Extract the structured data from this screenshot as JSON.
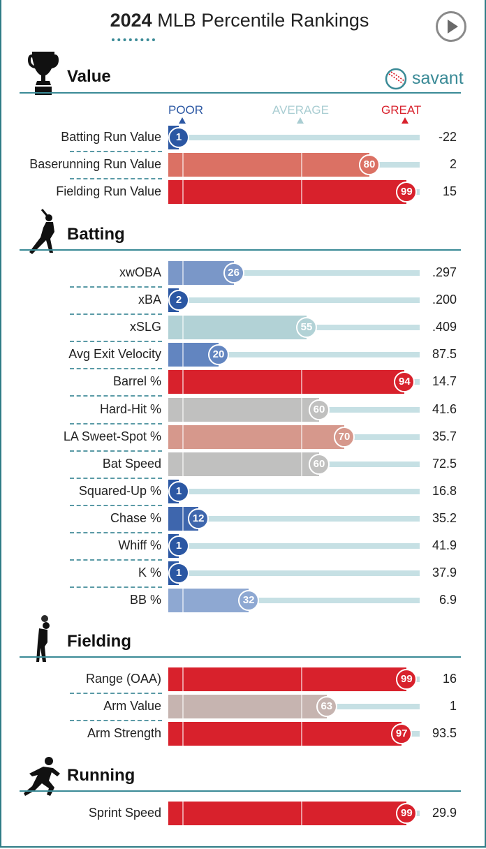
{
  "header": {
    "title_year": "2024",
    "title_rest": "MLB Percentile Rankings",
    "brand": "savant"
  },
  "scale_labels": {
    "poor": "POOR",
    "average": "AVERAGE",
    "great": "GREAT"
  },
  "colors": {
    "poor": "#2b57a3",
    "average": "#b0d3d8",
    "great": "#d8212c",
    "accent": "#3a8a96"
  },
  "icons": {
    "value": "trophy-icon",
    "batting": "batter-icon",
    "fielding": "fielder-icon",
    "running": "runner-icon",
    "brand": "baseball-icon"
  },
  "chart_data": {
    "type": "bar",
    "title": "2024 MLB Percentile Rankings",
    "xlim": [
      0,
      100
    ],
    "sections": [
      {
        "name": "Value",
        "metrics": [
          {
            "label": "Batting Run Value",
            "percentile": 1,
            "value": "-22",
            "color": "#2b57a3"
          },
          {
            "label": "Baserunning Run Value",
            "percentile": 80,
            "value": "2",
            "color": "#db7164"
          },
          {
            "label": "Fielding Run Value",
            "percentile": 99,
            "value": "15",
            "color": "#d8212c"
          }
        ]
      },
      {
        "name": "Batting",
        "metrics": [
          {
            "label": "xwOBA",
            "percentile": 26,
            "value": ".297",
            "color": "#7a97c8"
          },
          {
            "label": "xBA",
            "percentile": 2,
            "value": ".200",
            "color": "#2b57a3"
          },
          {
            "label": "xSLG",
            "percentile": 55,
            "value": ".409",
            "color": "#b2d2d6"
          },
          {
            "label": "Avg Exit Velocity",
            "percentile": 20,
            "value": "87.5",
            "color": "#6285c0"
          },
          {
            "label": "Barrel %",
            "percentile": 94,
            "value": "14.7",
            "color": "#d8212c"
          },
          {
            "label": "Hard-Hit %",
            "percentile": 60,
            "value": "41.6",
            "color": "#c0c0bf"
          },
          {
            "label": "LA Sweet-Spot %",
            "percentile": 70,
            "value": "35.7",
            "color": "#d6988c"
          },
          {
            "label": "Bat Speed",
            "percentile": 60,
            "value": "72.5",
            "color": "#c0c0bf"
          },
          {
            "label": "Squared-Up %",
            "percentile": 1,
            "value": "16.8",
            "color": "#2b57a3"
          },
          {
            "label": "Chase %",
            "percentile": 12,
            "value": "35.2",
            "color": "#3e66ad"
          },
          {
            "label": "Whiff %",
            "percentile": 1,
            "value": "41.9",
            "color": "#2b57a3"
          },
          {
            "label": "K %",
            "percentile": 1,
            "value": "37.9",
            "color": "#2b57a3"
          },
          {
            "label": "BB %",
            "percentile": 32,
            "value": "6.9",
            "color": "#8ea8d2"
          }
        ]
      },
      {
        "name": "Fielding",
        "metrics": [
          {
            "label": "Range (OAA)",
            "percentile": 99,
            "value": "16",
            "color": "#d8212c"
          },
          {
            "label": "Arm Value",
            "percentile": 63,
            "value": "1",
            "color": "#c6b4b0"
          },
          {
            "label": "Arm Strength",
            "percentile": 97,
            "value": "93.5",
            "color": "#d8212c"
          }
        ]
      },
      {
        "name": "Running",
        "metrics": [
          {
            "label": "Sprint Speed",
            "percentile": 99,
            "value": "29.9",
            "color": "#d8212c"
          }
        ]
      }
    ]
  }
}
